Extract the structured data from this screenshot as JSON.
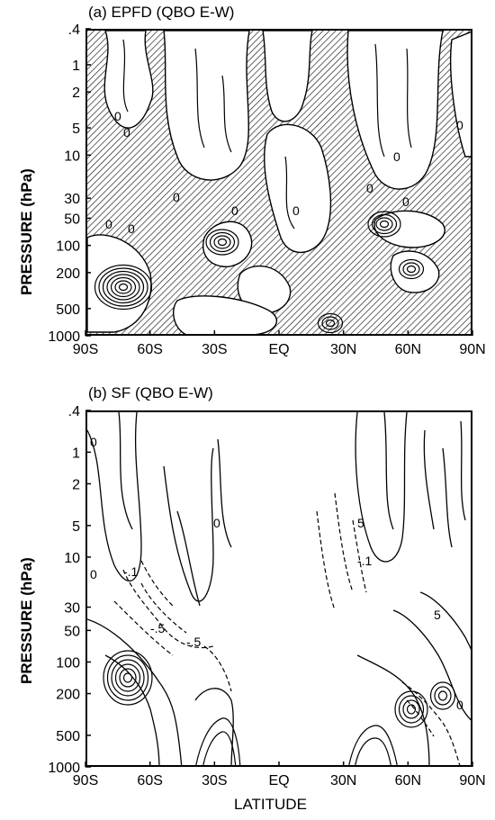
{
  "panels": [
    {
      "id": "a",
      "title": "(a) EPFD (QBO E-W)",
      "ylabel": "PRESSURE (hPa)",
      "xlabel": "",
      "chart_data": {
        "type": "heatmap",
        "x_ticks": [
          "90S",
          "60S",
          "30S",
          "EQ",
          "30N",
          "60N",
          "90N"
        ],
        "y_ticks": [
          ".4",
          "1",
          "2",
          "5",
          "10",
          "30",
          "50",
          "100",
          "200",
          "500",
          "1000"
        ],
        "y_scale": "log",
        "ylim": [
          1000,
          0.4
        ],
        "xlim": [
          -90,
          90
        ],
        "contour_labels": [
          "0",
          "0",
          "0",
          "0",
          "0",
          "0",
          "0",
          "0",
          "0",
          "0",
          "0"
        ],
        "hatched": true
      }
    },
    {
      "id": "b",
      "title": "(b) SF (QBO E-W)",
      "ylabel": "PRESSURE (hPa)",
      "xlabel": "LATITUDE",
      "chart_data": {
        "type": "heatmap",
        "x_ticks": [
          "90S",
          "60S",
          "30S",
          "EQ",
          "30N",
          "60N",
          "90N"
        ],
        "y_ticks": [
          ".4",
          "1",
          "2",
          "5",
          "10",
          "30",
          "50",
          "100",
          "200",
          "500",
          "1000"
        ],
        "y_scale": "log",
        "ylim": [
          1000,
          0.4
        ],
        "xlim": [
          -90,
          90
        ],
        "contour_labels": [
          "0",
          "0",
          "0",
          "-.1",
          "-.5",
          "-.5",
          "-.1",
          "5",
          "5",
          "0"
        ],
        "hatched": false
      }
    }
  ]
}
